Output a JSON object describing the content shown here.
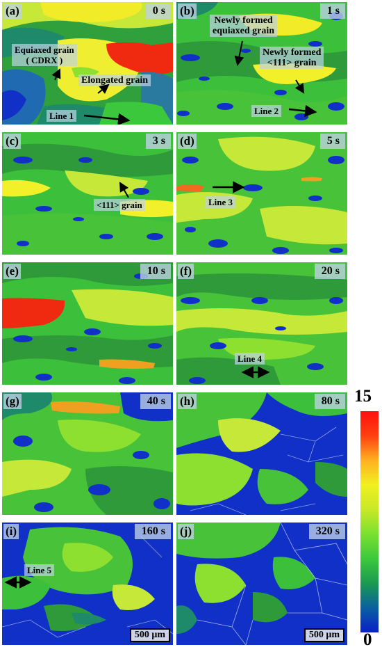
{
  "panels": [
    {
      "id": "a",
      "label": "(a)",
      "time": "0 s",
      "annotations": [
        "Equiaxed grain\n( CDRX )",
        "Elongated grain",
        "Line 1"
      ]
    },
    {
      "id": "b",
      "label": "(b)",
      "time": "1 s",
      "annotations": [
        "Newly formed\nequiaxed grain",
        "Newly formed\n<111> grain",
        "Line 2"
      ]
    },
    {
      "id": "c",
      "label": "(c)",
      "time": "3 s",
      "annotations": [
        "<111> grain"
      ]
    },
    {
      "id": "d",
      "label": "(d)",
      "time": "5 s",
      "annotations": [
        "Line 3"
      ]
    },
    {
      "id": "e",
      "label": "(e)",
      "time": "10 s",
      "annotations": []
    },
    {
      "id": "f",
      "label": "(f)",
      "time": "20 s",
      "annotations": [
        "Line 4"
      ]
    },
    {
      "id": "g",
      "label": "(g)",
      "time": "40 s",
      "annotations": []
    },
    {
      "id": "h",
      "label": "(h)",
      "time": "80 s",
      "annotations": []
    },
    {
      "id": "i",
      "label": "(i)",
      "time": "160 s",
      "annotations": [
        "Line 5"
      ],
      "scalebar": "500 μm"
    },
    {
      "id": "j",
      "label": "(j)",
      "time": "320 s",
      "annotations": [],
      "scalebar": "500 μm"
    }
  ],
  "colorbar": {
    "max_label": "15",
    "min_label": "0",
    "colors": [
      "#0a20c8",
      "#0a60a0",
      "#1a9a50",
      "#3cc83c",
      "#7ae030",
      "#c8e828",
      "#f0f020",
      "#ffb020",
      "#ff4010",
      "#ff1010"
    ]
  },
  "palette": {
    "blue": "#1030c8",
    "teal": "#1f8a6a",
    "darkgreen": "#2f9a3a",
    "green": "#48c238",
    "lime": "#8ee030",
    "yellowgreen": "#c6e838",
    "yellow": "#f2f028",
    "orange": "#f0a020",
    "red": "#f02a10"
  }
}
